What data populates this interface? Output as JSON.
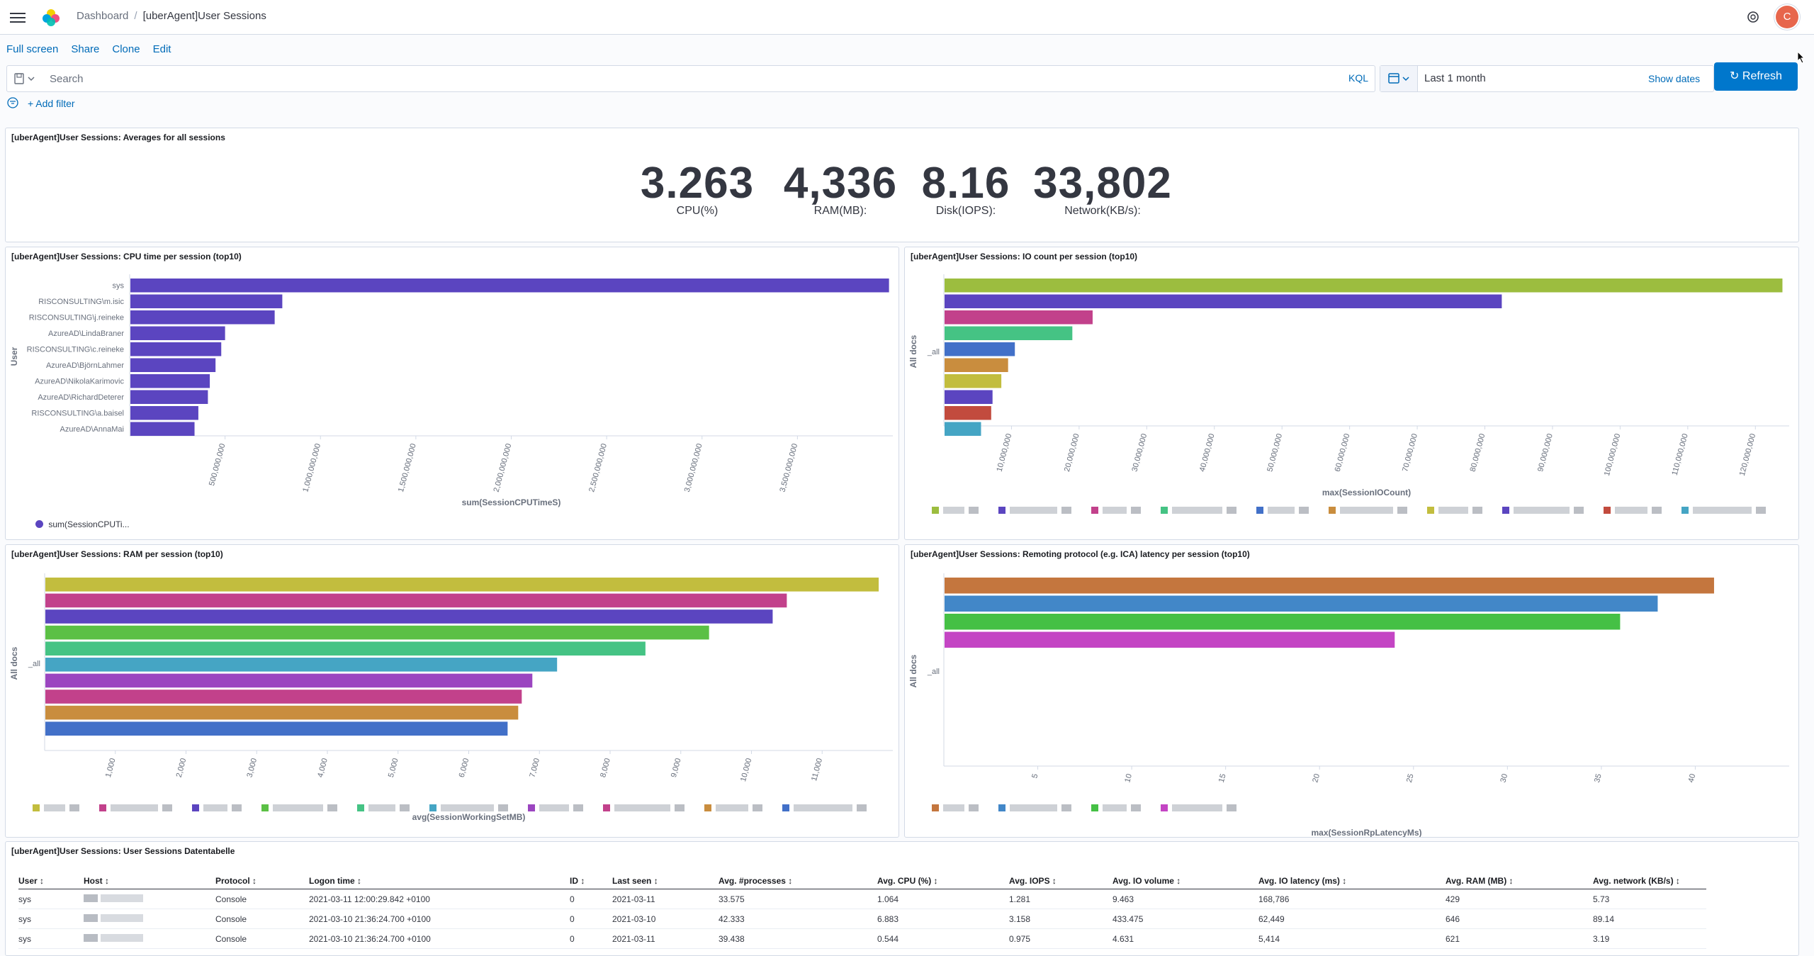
{
  "header": {
    "breadcrumb_root": "Dashboard",
    "breadcrumb_current": "[uberAgent]User Sessions",
    "avatar_initial": "C"
  },
  "topnav": {
    "full_screen": "Full screen",
    "share": "Share",
    "clone": "Clone",
    "edit": "Edit"
  },
  "query": {
    "placeholder": "Search",
    "kql": "KQL",
    "date_range": "Last 1 month",
    "show_dates": "Show dates",
    "refresh": "Refresh"
  },
  "filters": {
    "add_filter": "+ Add filter"
  },
  "colors": {
    "accent": "#0077cc",
    "avatar": "#e7664c",
    "bar_purple": "#5b45c0"
  },
  "metrics_panel": {
    "title": "[uberAgent]User Sessions: Averages for all sessions",
    "items": [
      {
        "value": "3.263",
        "label": "CPU(%)"
      },
      {
        "value": "4,336",
        "label": "RAM(MB):"
      },
      {
        "value": "8.16",
        "label": "Disk(IOPS):"
      },
      {
        "value": "33,802",
        "label": "Network(KB/s):"
      }
    ]
  },
  "cpu_panel": {
    "title": "[uberAgent]User Sessions: CPU time per session (top10)",
    "legend": "sum(SessionCPUTi..."
  },
  "io_panel": {
    "title": "[uberAgent]User Sessions: IO count per session (top10)"
  },
  "ram_panel": {
    "title": "[uberAgent]User Sessions: RAM per session (top10)"
  },
  "latency_panel": {
    "title": "[uberAgent]User Sessions: Remoting protocol (e.g. ICA) latency per session (top10)"
  },
  "chart_data": [
    {
      "type": "bar",
      "title": "[uberAgent]User Sessions: CPU time per session (top10)",
      "orientation": "horizontal",
      "ylabel": "User",
      "xlabel": "sum(SessionCPUTimeS)",
      "categories": [
        "sys",
        "RISCONSULTING\\m.isic",
        "RISCONSULTING\\j.reineke",
        "AzureAD\\LindaBraner",
        "RISCONSULTING\\c.reineke",
        "AzureAD\\BjörnLahmer",
        "AzureAD\\NikolaKarimovic",
        "AzureAD\\RichardDeterer",
        "RISCONSULTING\\a.baisel",
        "AzureAD\\AnnaMai"
      ],
      "values": [
        3980000000,
        800000000,
        760000000,
        500000000,
        480000000,
        450000000,
        420000000,
        410000000,
        360000000,
        340000000
      ],
      "xlim": [
        0,
        4000000000
      ],
      "xticks": [
        "500,000,000",
        "1,000,000,000",
        "1,500,000,000",
        "2,000,000,000",
        "2,500,000,000",
        "3,000,000,000",
        "3,500,000,000"
      ],
      "xtick_values": [
        500000000,
        1000000000,
        1500000000,
        2000000000,
        2500000000,
        3000000000,
        3500000000
      ],
      "colors": [
        "#5b45c0"
      ]
    },
    {
      "type": "bar",
      "title": "[uberAgent]User Sessions: IO count per session (top10)",
      "orientation": "horizontal",
      "ylabel": "All docs",
      "category_label": "_all",
      "xlabel": "max(SessionIOCount)",
      "values": [
        124000000,
        82500000,
        22000000,
        19000000,
        10500000,
        9500000,
        8500000,
        7200000,
        7000000,
        5500000
      ],
      "xlim": [
        0,
        125000000
      ],
      "xticks": [
        "10,000,000",
        "20,000,000",
        "30,000,000",
        "40,000,000",
        "50,000,000",
        "60,000,000",
        "70,000,000",
        "80,000,000",
        "90,000,000",
        "100,000,000",
        "110,000,000",
        "120,000,000"
      ],
      "xtick_values": [
        10000000,
        20000000,
        30000000,
        40000000,
        50000000,
        60000000,
        70000000,
        80000000,
        90000000,
        100000000,
        110000000,
        120000000
      ],
      "colors": [
        "#9cbd3f",
        "#5b45c0",
        "#c2418b",
        "#45c384",
        "#4270c8",
        "#c98d3e",
        "#c2bd3e",
        "#5b45c0",
        "#c24b3e",
        "#45a5c4"
      ]
    },
    {
      "type": "bar",
      "title": "[uberAgent]User Sessions: RAM per session (top10)",
      "orientation": "horizontal",
      "ylabel": "All docs",
      "category_label": "_all",
      "xlabel": "avg(SessionWorkingSetMB)",
      "values": [
        11800,
        10500,
        10300,
        9400,
        8500,
        7250,
        6900,
        6750,
        6700,
        6550
      ],
      "xlim": [
        0,
        12000
      ],
      "xticks": [
        "1,000",
        "2,000",
        "3,000",
        "4,000",
        "5,000",
        "6,000",
        "7,000",
        "8,000",
        "9,000",
        "10,000",
        "11,000"
      ],
      "xtick_values": [
        1000,
        2000,
        3000,
        4000,
        5000,
        6000,
        7000,
        8000,
        9000,
        10000,
        11000
      ],
      "colors": [
        "#c2bd3e",
        "#c2418b",
        "#5b45c0",
        "#5bc045",
        "#45c384",
        "#45a5c4",
        "#9b45c0",
        "#c2418b",
        "#c98d3e",
        "#4270c8"
      ]
    },
    {
      "type": "bar",
      "title": "[uberAgent]User Sessions: Remoting protocol (e.g. ICA) latency per session (top10)",
      "orientation": "horizontal",
      "ylabel": "All docs",
      "category_label": "_all",
      "xlabel": "max(SessionRpLatencyMs)",
      "values": [
        41,
        38,
        36,
        24
      ],
      "xlim": [
        0,
        45
      ],
      "xticks": [
        "5",
        "10",
        "15",
        "20",
        "25",
        "30",
        "35",
        "40"
      ],
      "xtick_values": [
        5,
        10,
        15,
        20,
        25,
        30,
        35,
        40
      ],
      "colors": [
        "#c4763e",
        "#4287c8",
        "#45c045",
        "#c445c4"
      ]
    }
  ],
  "table": {
    "title": "[uberAgent]User Sessions: User Sessions Datentabelle",
    "columns": [
      "User",
      "Host",
      "Protocol",
      "Logon time",
      "ID",
      "Last seen",
      "Avg. #processes",
      "Avg. CPU (%)",
      "Avg. IOPS",
      "Avg. IO volume",
      "Avg. IO latency (ms)",
      "Avg. RAM (MB)",
      "Avg. network (KB/s)"
    ],
    "rows": [
      [
        "sys",
        "",
        "Console",
        "2021-03-11 12:00:29.842 +0100",
        "0",
        "2021-03-11",
        "33.575",
        "1.064",
        "1.281",
        "9.463",
        "168,786",
        "429",
        "5.73"
      ],
      [
        "sys",
        "",
        "Console",
        "2021-03-10 21:36:24.700 +0100",
        "0",
        "2021-03-10",
        "42.333",
        "6.883",
        "3.158",
        "433.475",
        "62,449",
        "646",
        "89.14"
      ],
      [
        "sys",
        "",
        "Console",
        "2021-03-10 21:36:24.700 +0100",
        "0",
        "2021-03-11",
        "39.438",
        "0.544",
        "0.975",
        "4.631",
        "5,414",
        "621",
        "3.19"
      ]
    ]
  }
}
